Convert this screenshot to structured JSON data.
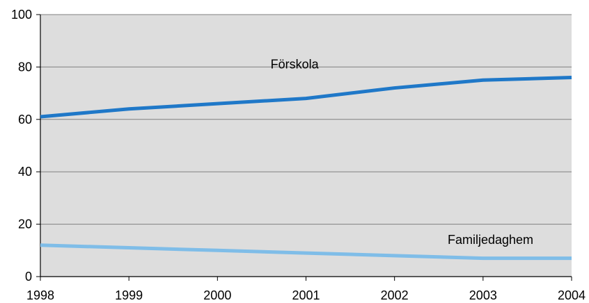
{
  "chart_data": {
    "type": "line",
    "x": [
      1998,
      1999,
      2000,
      2001,
      2002,
      2003,
      2004
    ],
    "ylim": [
      0,
      100
    ],
    "yticks": [
      0,
      20,
      40,
      60,
      80,
      100
    ],
    "grid": true,
    "series": [
      {
        "name": "Förskola",
        "values": [
          61,
          64,
          66,
          68,
          72,
          75,
          76
        ],
        "color": "#1f78c8"
      },
      {
        "name": "Familjedaghem",
        "values": [
          12,
          11,
          10,
          9,
          8,
          7,
          7
        ],
        "color": "#7fbde8"
      }
    ],
    "plot_background": "#dddddd"
  }
}
